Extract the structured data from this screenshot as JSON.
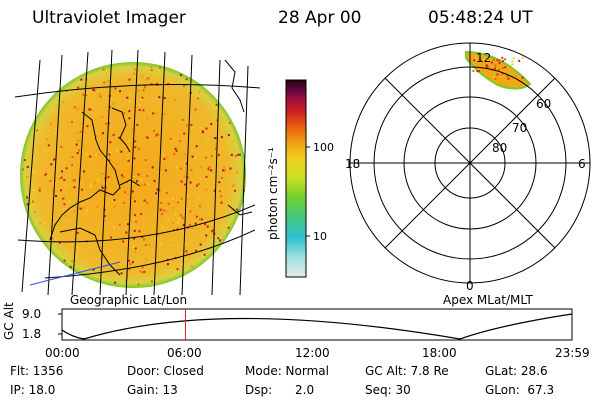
{
  "header": {
    "title": "Ultraviolet Imager",
    "date": "28 Apr 00",
    "time": "05:48:24 UT"
  },
  "colorbar": {
    "unit_label": "photon cm⁻²s⁻¹",
    "ticks": [
      "100",
      "10"
    ]
  },
  "panels": {
    "left_caption": "Geographic Lat/Lon",
    "right_caption": "Apex MLat/MLT"
  },
  "polar": {
    "mlt_labels": [
      "12",
      "18",
      "6",
      "0"
    ],
    "mlat_labels": [
      "60",
      "70",
      "80"
    ]
  },
  "altitude_plot": {
    "ylabel": "GC Alt",
    "yticks": [
      "9.0",
      "1.8"
    ],
    "xticks": [
      "00:00",
      "06:00",
      "12:00",
      "18:00",
      "23:59"
    ],
    "current_time_marker_hour": 5.81
  },
  "info": {
    "flt": "Flt: 1356",
    "door": "Door: Closed",
    "mode": "Mode: Normal",
    "gc_alt": "GC Alt: 7.8 Re",
    "glat": "GLat:  28.6",
    "ip": "IP: 18.0",
    "gain": "Gain: 13",
    "dsp": "Dsp:      2.0",
    "seq": "Seq: 30",
    "glon": "GLon:  67.3"
  },
  "colors": {
    "disk_fill": "#f0b020",
    "disk_edge": "#78c828",
    "marker": "#e02020"
  }
}
